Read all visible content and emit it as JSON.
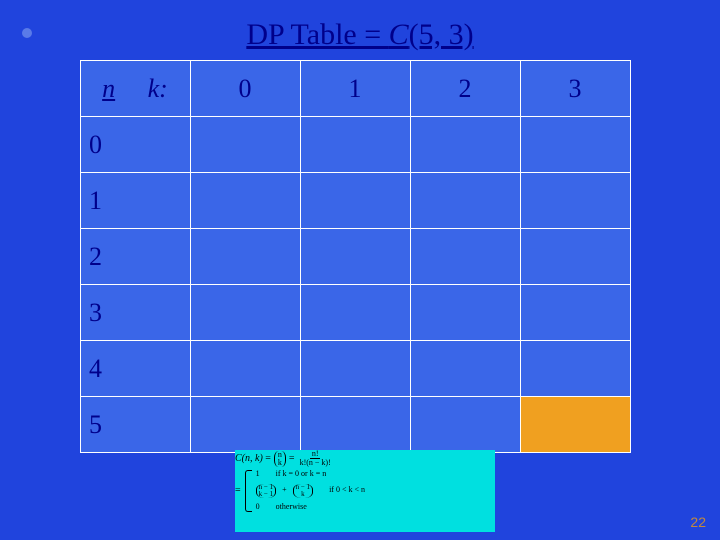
{
  "background_color": "#2044dd",
  "text_color": "#00008b",
  "title": {
    "prefix": "DP Table = ",
    "c": "C",
    "args": "(5, 3)",
    "color": "#00008b"
  },
  "corner_dot_color": "#5a7be8",
  "table": {
    "header_n": "n",
    "header_k": "k:",
    "k_values": [
      "0",
      "1",
      "2",
      "3"
    ],
    "n_values": [
      "0",
      "1",
      "2",
      "3",
      "4",
      "5"
    ],
    "cell_fill_default": "#3a66e8",
    "target_cell": {
      "row": 5,
      "col": 3,
      "fill": "#f0a020"
    },
    "border_color": "#ffffff"
  },
  "formula": {
    "box_bg": "#00e0e0",
    "lhs": "C(n, k)",
    "binom_top": "n",
    "binom_bot": "k",
    "frac_num": "n!",
    "frac_den": "k!(n − k)!",
    "case1_val": "1",
    "case1_cond": "if k = 0 or k = n",
    "case2_a_top": "n − 1",
    "case2_a_bot": "k − 1",
    "case2_b_top": "n − 1",
    "case2_b_bot": "k",
    "case2_cond": "if 0 < k < n",
    "case3_val": "0",
    "case3_cond": "otherwise"
  },
  "page_number": "22",
  "page_number_color": "#c08840"
}
